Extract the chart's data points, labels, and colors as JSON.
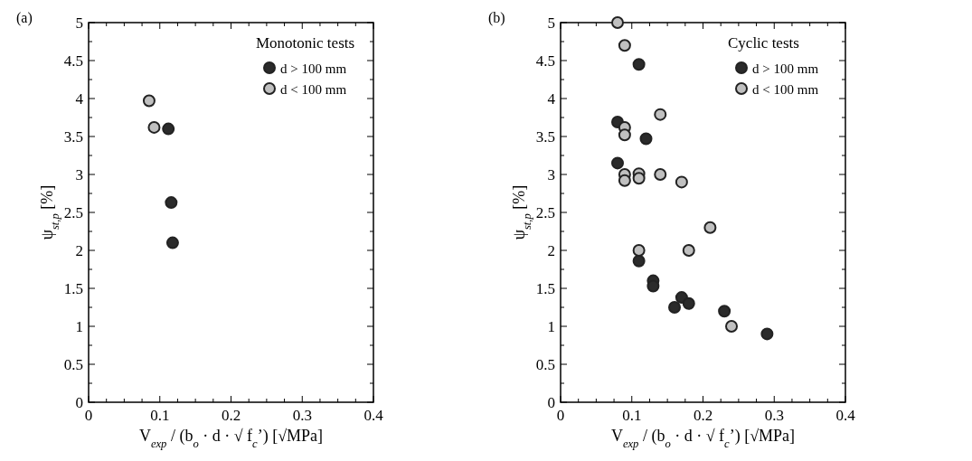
{
  "chart_data": [
    {
      "type": "scatter",
      "title": "(a)",
      "xlabel": "V$_{exp}$ / (b$_{o}$ · d · √ f$_{c}$’) [√MPa]",
      "ylabel": "ψ$_{st,p}$ [%]",
      "legend_title": "Monotonic tests",
      "legend": "top right",
      "marker": "circle",
      "grid": false,
      "xlim": [
        0,
        0.4
      ],
      "ylim": [
        0,
        5
      ],
      "xticks": [
        0,
        {
          "value": 0.025,
          "label": null
        },
        {
          "value": 0.05,
          "label": null
        },
        {
          "value": 0.075,
          "label": null
        },
        0.1,
        {
          "value": 0.125,
          "label": null
        },
        {
          "value": 0.15,
          "label": null
        },
        {
          "value": 0.175,
          "label": null
        },
        0.2,
        {
          "value": 0.225,
          "label": null
        },
        {
          "value": 0.25,
          "label": null
        },
        {
          "value": 0.275,
          "label": null
        },
        0.3,
        {
          "value": 0.325,
          "label": null
        },
        {
          "value": 0.35,
          "label": null
        },
        {
          "value": 0.375,
          "label": null
        },
        0.4
      ],
      "yticks": [
        0,
        {
          "value": 0.25,
          "label": null
        },
        0.5,
        {
          "value": 0.75,
          "label": null
        },
        1,
        {
          "value": 1.25,
          "label": null
        },
        1.5,
        {
          "value": 1.75,
          "label": null
        },
        2,
        {
          "value": 2.25,
          "label": null
        },
        2.5,
        {
          "value": 2.75,
          "label": null
        },
        3,
        {
          "value": 3.25,
          "label": null
        },
        3.5,
        {
          "value": 3.75,
          "label": null
        },
        4,
        {
          "value": 4.25,
          "label": null
        },
        4.5,
        {
          "value": 4.75,
          "label": null
        },
        5
      ],
      "series": [
        {
          "name": "d > 100 mm",
          "color": "#2b2b2b",
          "x": [
            0.112,
            0.116,
            0.118
          ],
          "values": [
            3.6,
            2.63,
            2.1
          ]
        },
        {
          "name": "d < 100 mm",
          "color": "#c0c0c0",
          "x": [
            0.085,
            0.092
          ],
          "values": [
            3.97,
            3.62
          ]
        }
      ]
    },
    {
      "type": "scatter",
      "title": "(b)",
      "xlabel": "V$_{exp}$ / (b$_{o}$ · d · √ f$_{c}$’) [√MPa]",
      "ylabel": "ψ$_{st,p}$ [%]",
      "legend_title": "Cyclic  tests",
      "legend": "top right",
      "marker": "circle",
      "grid": false,
      "xlim": [
        0,
        0.4
      ],
      "ylim": [
        0,
        5
      ],
      "xticks": [
        0,
        {
          "value": 0.025,
          "label": null
        },
        {
          "value": 0.05,
          "label": null
        },
        {
          "value": 0.075,
          "label": null
        },
        0.1,
        {
          "value": 0.125,
          "label": null
        },
        {
          "value": 0.15,
          "label": null
        },
        {
          "value": 0.175,
          "label": null
        },
        0.2,
        {
          "value": 0.225,
          "label": null
        },
        {
          "value": 0.25,
          "label": null
        },
        {
          "value": 0.275,
          "label": null
        },
        0.3,
        {
          "value": 0.325,
          "label": null
        },
        {
          "value": 0.35,
          "label": null
        },
        {
          "value": 0.375,
          "label": null
        },
        0.4
      ],
      "yticks": [
        0,
        {
          "value": 0.25,
          "label": null
        },
        0.5,
        {
          "value": 0.75,
          "label": null
        },
        1,
        {
          "value": 1.25,
          "label": null
        },
        1.5,
        {
          "value": 1.75,
          "label": null
        },
        2,
        {
          "value": 2.25,
          "label": null
        },
        2.5,
        {
          "value": 2.75,
          "label": null
        },
        3,
        {
          "value": 3.25,
          "label": null
        },
        3.5,
        {
          "value": 3.75,
          "label": null
        },
        4,
        {
          "value": 4.25,
          "label": null
        },
        4.5,
        {
          "value": 4.75,
          "label": null
        },
        5
      ],
      "series": [
        {
          "name": "d > 100 mm",
          "color": "#2b2b2b",
          "x": [
            0.08,
            0.11,
            0.12,
            0.08,
            0.11,
            0.13,
            0.13,
            0.16,
            0.17,
            0.18,
            0.23,
            0.29
          ],
          "values": [
            3.69,
            4.45,
            3.47,
            3.15,
            1.86,
            1.6,
            1.53,
            1.25,
            1.38,
            1.3,
            1.2,
            0.9
          ]
        },
        {
          "name": "d < 100 mm",
          "color": "#c0c0c0",
          "x": [
            0.08,
            0.09,
            0.09,
            0.09,
            0.14,
            0.09,
            0.09,
            0.11,
            0.11,
            0.14,
            0.17,
            0.11,
            0.21,
            0.18,
            0.24
          ],
          "values": [
            5,
            4.7,
            3.62,
            3.52,
            3.79,
            3.0,
            2.92,
            3.01,
            2.95,
            3.0,
            2.9,
            2.0,
            2.3,
            2.0,
            1.0
          ]
        }
      ]
    }
  ]
}
